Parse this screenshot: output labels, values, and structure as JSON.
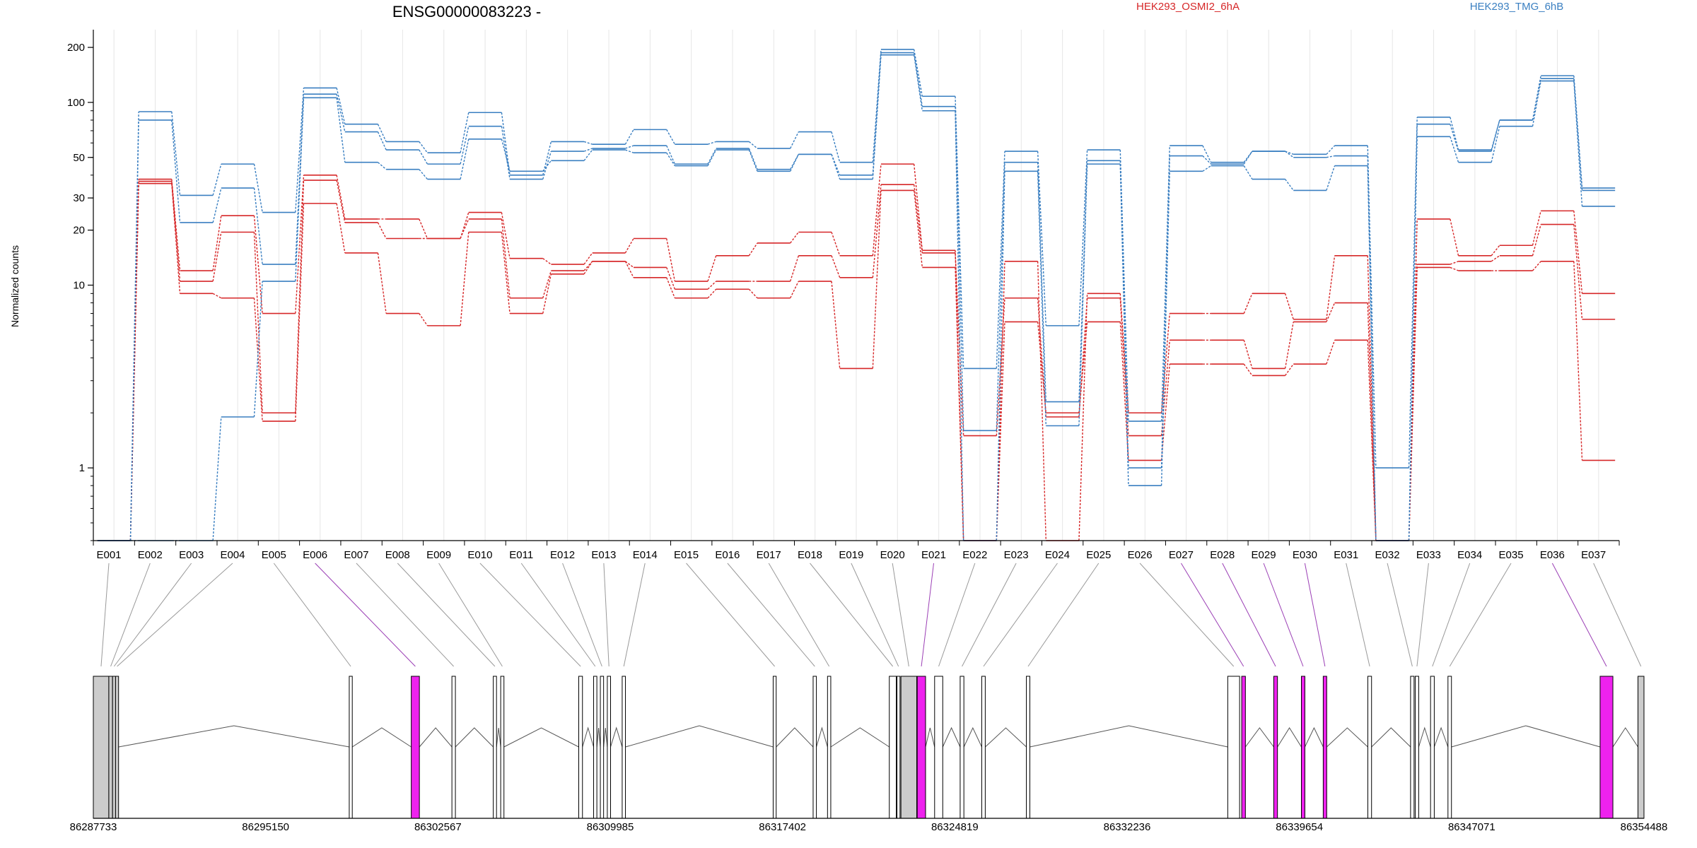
{
  "chart_data": {
    "type": "line",
    "title": "ENSG00000083223 -",
    "ylabel": "Normalized counts",
    "yscale": "log",
    "ylim": [
      0.4,
      250
    ],
    "yticks": [
      1,
      10,
      20,
      30,
      50,
      100,
      200
    ],
    "ytick_labels": [
      "1",
      "10",
      "20",
      "30",
      "50",
      "100",
      "200"
    ],
    "grid": "vertical-light",
    "legend": [
      {
        "name": "HEK293_OSMI2_6hA",
        "color": "#d62728"
      },
      {
        "name": "HEK293_TMG_6hB",
        "color": "#3a7fc1"
      }
    ],
    "categories": [
      "E001",
      "E002",
      "E003",
      "E004",
      "E005",
      "E006",
      "E007",
      "E008",
      "E009",
      "E010",
      "E011",
      "E012",
      "E013",
      "E014",
      "E015",
      "E016",
      "E017",
      "E018",
      "E019",
      "E020",
      "E021",
      "E022",
      "E023",
      "E024",
      "E025",
      "E026",
      "E027",
      "E028",
      "E029",
      "E030",
      "E031",
      "E032",
      "E033",
      "E034",
      "E035",
      "E036",
      "E037"
    ],
    "series": [
      {
        "group": "HEK293_OSMI2_6hA",
        "color": "#d62728",
        "values": [
          0.4,
          38,
          12,
          24,
          7,
          40,
          23,
          23,
          18,
          25,
          14,
          13,
          15,
          18,
          10.5,
          14.5,
          17,
          19.5,
          14.5,
          46,
          15.5,
          0.4,
          13.5,
          0.4,
          9,
          2.0,
          7,
          7,
          9,
          6.5,
          14.5,
          0.4,
          23,
          14.5,
          16.5,
          25.5,
          9
        ]
      },
      {
        "group": "HEK293_OSMI2_6hA",
        "color": "#d62728",
        "values": [
          0.4,
          37,
          10.5,
          19.5,
          2.0,
          37.5,
          22,
          18,
          18,
          23,
          8.5,
          12,
          13.5,
          12.5,
          9.5,
          10.5,
          10.5,
          14.5,
          11,
          35.5,
          15,
          1.5,
          8.5,
          1.9,
          8.5,
          1.5,
          5.0,
          5.0,
          3.5,
          6.3,
          8,
          0.4,
          13,
          13.5,
          14.5,
          21.5,
          6.5
        ]
      },
      {
        "group": "HEK293_OSMI2_6hA",
        "color": "#d62728",
        "values": [
          0.4,
          36,
          9,
          8.5,
          1.8,
          28,
          15,
          7,
          6,
          19.5,
          7,
          11.5,
          13.5,
          11,
          8.5,
          9.5,
          8.5,
          10.5,
          3.5,
          33,
          12.5,
          0.4,
          6.3,
          2.0,
          6.3,
          1.1,
          3.7,
          3.7,
          3.2,
          3.7,
          5,
          0.4,
          12.5,
          12,
          12,
          13.5,
          1.1
        ]
      },
      {
        "group": "HEK293_TMG_6hB",
        "color": "#3a7fc1",
        "values": [
          0.4,
          89,
          31,
          46,
          25,
          120,
          76,
          61,
          53,
          88,
          40,
          61,
          59,
          71,
          59,
          61,
          56,
          69,
          47,
          195,
          108,
          3.5,
          54,
          6.0,
          55,
          1.8,
          58,
          47,
          54,
          52,
          58,
          1.0,
          83,
          55,
          80,
          140,
          34
        ]
      },
      {
        "group": "HEK293_TMG_6hB",
        "color": "#3a7fc1",
        "values": [
          0.4,
          80,
          22,
          34,
          13,
          111,
          69,
          55,
          46,
          74,
          38,
          54,
          56,
          58,
          46,
          56,
          43,
          52,
          40,
          187,
          95,
          1.6,
          47,
          2.3,
          48,
          1.0,
          51,
          46,
          54,
          50,
          51,
          0.4,
          76,
          54,
          80,
          135,
          33
        ]
      },
      {
        "group": "HEK293_TMG_6hB",
        "color": "#3a7fc1",
        "values": [
          0.4,
          0.4,
          0.4,
          1.9,
          10.5,
          106,
          47,
          43,
          38,
          63,
          42,
          48,
          55,
          53,
          45,
          55,
          42,
          52,
          38,
          182,
          90,
          0.4,
          42,
          1.7,
          46,
          0.8,
          42,
          45,
          38,
          33,
          45,
          0.4,
          65,
          47,
          74,
          131,
          27
        ]
      }
    ]
  },
  "gene_model": {
    "xlim": [
      86287733,
      86354488
    ],
    "xticks": [
      86287733,
      86295150,
      86302567,
      86309985,
      86317402,
      86324819,
      86332236,
      86339654,
      86347071,
      86354488
    ],
    "xtick_labels": [
      "86287733",
      "86295150",
      "86302567",
      "86309985",
      "86317402",
      "86324819",
      "86332236",
      "86339654",
      "86347071",
      "86354488"
    ],
    "colors": {
      "significant": "#ee22ee",
      "utr": "#cccccc",
      "exon": "#ffffff",
      "outline": "#000000",
      "connector_normal": "#999999",
      "connector_significant": "#9b3fb5"
    },
    "exons": [
      {
        "id": "E001",
        "start": 86287733,
        "end": 86288400,
        "kind": "utr"
      },
      {
        "id": "E002",
        "start": 86288400,
        "end": 86288560,
        "kind": "utr"
      },
      {
        "id": "E003",
        "start": 86288560,
        "end": 86288690,
        "kind": "utr"
      },
      {
        "id": "E004",
        "start": 86288690,
        "end": 86288820,
        "kind": "utr"
      },
      {
        "id": "E005",
        "start": 86298750,
        "end": 86298880,
        "kind": "exon"
      },
      {
        "id": "E006",
        "start": 86301420,
        "end": 86301770,
        "kind": "significant"
      },
      {
        "id": "E007",
        "start": 86303170,
        "end": 86303320,
        "kind": "exon"
      },
      {
        "id": "E008",
        "start": 86304950,
        "end": 86305090,
        "kind": "exon"
      },
      {
        "id": "E009",
        "start": 86305270,
        "end": 86305410,
        "kind": "exon"
      },
      {
        "id": "E010",
        "start": 86308630,
        "end": 86308790,
        "kind": "exon"
      },
      {
        "id": "E011",
        "start": 86309270,
        "end": 86309410,
        "kind": "exon"
      },
      {
        "id": "E012",
        "start": 86309560,
        "end": 86309700,
        "kind": "exon"
      },
      {
        "id": "E013",
        "start": 86309860,
        "end": 86310000,
        "kind": "exon"
      },
      {
        "id": "E014",
        "start": 86310500,
        "end": 86310640,
        "kind": "exon"
      },
      {
        "id": "E015",
        "start": 86317000,
        "end": 86317130,
        "kind": "exon"
      },
      {
        "id": "E016",
        "start": 86318720,
        "end": 86318860,
        "kind": "exon"
      },
      {
        "id": "E017",
        "start": 86319340,
        "end": 86319480,
        "kind": "exon"
      },
      {
        "id": "E018",
        "start": 86322000,
        "end": 86322300,
        "kind": "exon"
      },
      {
        "id": "E019",
        "start": 86322330,
        "end": 86322460,
        "kind": "exon"
      },
      {
        "id": "E020",
        "start": 86322500,
        "end": 86323180,
        "kind": "utr"
      },
      {
        "id": "E021",
        "start": 86323200,
        "end": 86323560,
        "kind": "significant"
      },
      {
        "id": "E022",
        "start": 86323950,
        "end": 86324300,
        "kind": "exon"
      },
      {
        "id": "E023",
        "start": 86325050,
        "end": 86325210,
        "kind": "exon"
      },
      {
        "id": "E024",
        "start": 86325980,
        "end": 86326130,
        "kind": "exon"
      },
      {
        "id": "E025",
        "start": 86327900,
        "end": 86328050,
        "kind": "exon"
      },
      {
        "id": "E026",
        "start": 86336570,
        "end": 86337080,
        "kind": "exon"
      },
      {
        "id": "E027",
        "start": 86337170,
        "end": 86337330,
        "kind": "significant"
      },
      {
        "id": "E028",
        "start": 86338550,
        "end": 86338710,
        "kind": "significant"
      },
      {
        "id": "E029",
        "start": 86339740,
        "end": 86339890,
        "kind": "significant"
      },
      {
        "id": "E030",
        "start": 86340680,
        "end": 86340830,
        "kind": "significant"
      },
      {
        "id": "E031",
        "start": 86342600,
        "end": 86342760,
        "kind": "exon"
      },
      {
        "id": "E032",
        "start": 86344440,
        "end": 86344590,
        "kind": "exon"
      },
      {
        "id": "E033",
        "start": 86344640,
        "end": 86344790,
        "kind": "exon"
      },
      {
        "id": "E034",
        "start": 86345300,
        "end": 86345460,
        "kind": "exon"
      },
      {
        "id": "E035",
        "start": 86346050,
        "end": 86346200,
        "kind": "exon"
      },
      {
        "id": "E036",
        "start": 86352600,
        "end": 86353150,
        "kind": "significant"
      },
      {
        "id": "E037",
        "start": 86354230,
        "end": 86354488,
        "kind": "utr"
      }
    ]
  }
}
